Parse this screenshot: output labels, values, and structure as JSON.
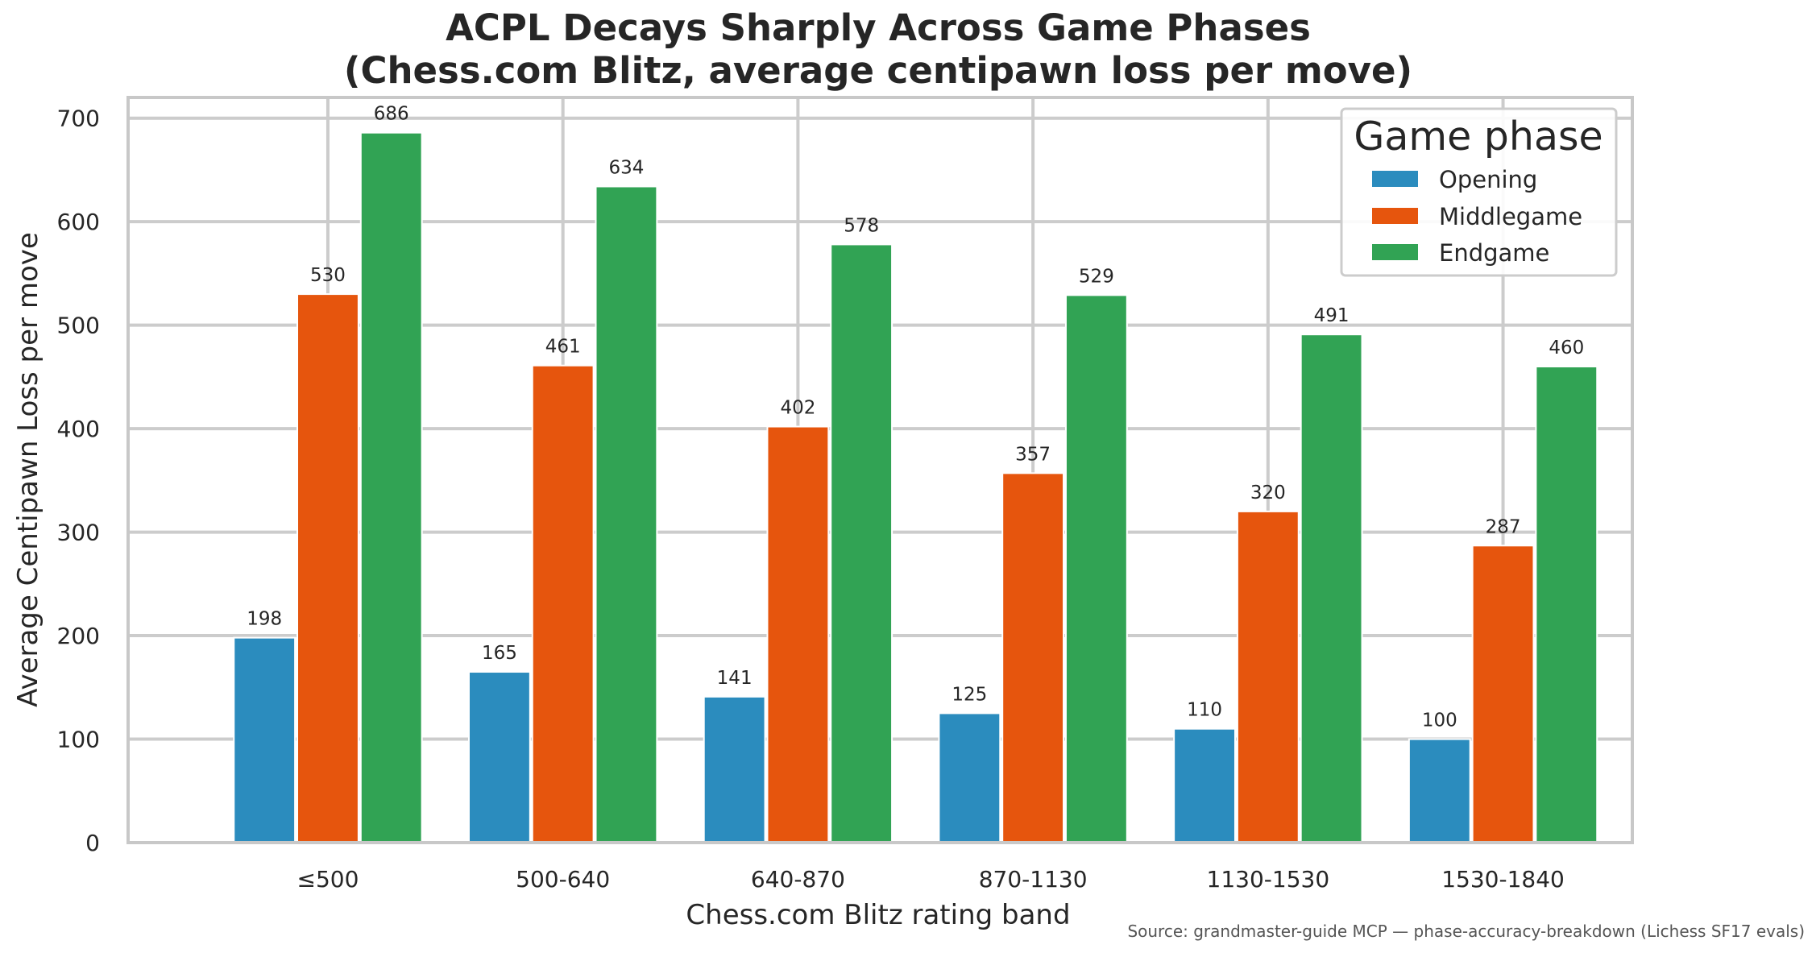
{
  "chart_data": {
    "type": "bar",
    "title_lines": [
      "ACPL Decays Sharply Across Game Phases",
      "(Chess.com Blitz, average centipawn loss per move)"
    ],
    "xlabel": "Chess.com Blitz rating band",
    "ylabel": "Average Centipawn Loss per move",
    "categories": [
      "≤500",
      "500-640",
      "640-870",
      "870-1130",
      "1130-1530",
      "1530-1840"
    ],
    "series": [
      {
        "name": "Opening",
        "color": "#2b8cbe",
        "values": [
          198,
          165,
          141,
          125,
          110,
          100
        ]
      },
      {
        "name": "Middlegame",
        "color": "#e6550d",
        "values": [
          530,
          461,
          402,
          357,
          320,
          287
        ]
      },
      {
        "name": "Endgame",
        "color": "#31a354",
        "values": [
          686,
          634,
          578,
          529,
          491,
          460
        ]
      }
    ],
    "ylim": [
      0,
      720
    ],
    "yticks": [
      0,
      100,
      200,
      300,
      400,
      500,
      600,
      700
    ],
    "grid": true,
    "legend": {
      "title": "Game phase",
      "placement": "top-right"
    },
    "source": "Source: grandmaster-guide MCP — phase-accuracy-breakdown (Lichess SF17 evals)"
  }
}
